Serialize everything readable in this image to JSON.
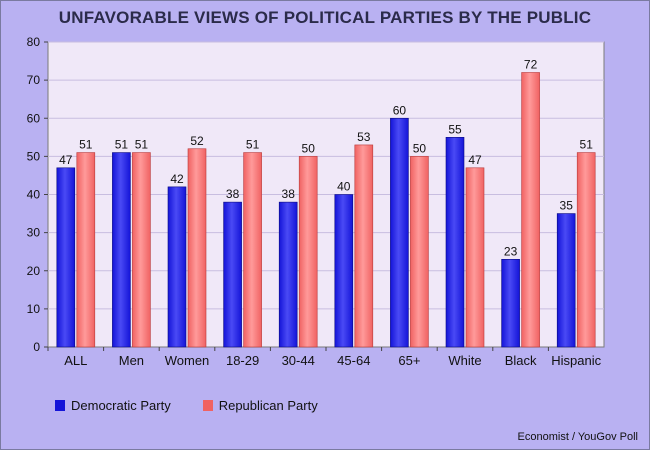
{
  "title": "UNFAVORABLE VIEWS OF POLITICAL PARTIES BY THE PUBLIC",
  "source": "Economist / YouGov Poll",
  "colors": {
    "background": "#b9b1f2",
    "plot_area": "#f0e8f8",
    "democratic": "#1414d8",
    "republican": "#f06262"
  },
  "chart_data": {
    "type": "bar",
    "categories": [
      "ALL",
      "Men",
      "Women",
      "18-29",
      "30-44",
      "45-64",
      "65+",
      "White",
      "Black",
      "Hispanic"
    ],
    "series": [
      {
        "name": "Democratic Party",
        "values": [
          47,
          51,
          42,
          38,
          38,
          40,
          60,
          55,
          23,
          35
        ]
      },
      {
        "name": "Republican Party",
        "values": [
          51,
          51,
          52,
          51,
          50,
          53,
          50,
          47,
          72,
          51
        ]
      }
    ],
    "title": "UNFAVORABLE VIEWS OF POLITICAL PARTIES BY THE PUBLIC",
    "xlabel": "",
    "ylabel": "",
    "ylim": [
      0,
      80
    ],
    "yticks": [
      0,
      10,
      20,
      30,
      40,
      50,
      60,
      70,
      80
    ],
    "grid": true,
    "legend": "bottom-left"
  }
}
